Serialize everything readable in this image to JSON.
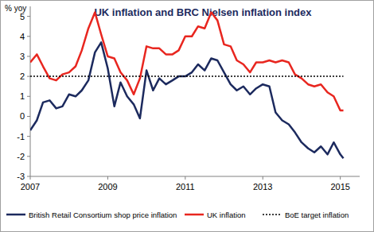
{
  "chart_data": {
    "type": "line",
    "title": "UK inflation and BRC Nielsen inflation index",
    "y_label": "% yoy",
    "x": [
      2007.0,
      2007.17,
      2007.33,
      2007.5,
      2007.67,
      2007.83,
      2008.0,
      2008.17,
      2008.33,
      2008.5,
      2008.67,
      2008.83,
      2009.0,
      2009.17,
      2009.33,
      2009.5,
      2009.67,
      2009.83,
      2010.0,
      2010.17,
      2010.33,
      2010.5,
      2010.67,
      2010.83,
      2011.0,
      2011.17,
      2011.33,
      2011.5,
      2011.67,
      2011.83,
      2012.0,
      2012.17,
      2012.33,
      2012.5,
      2012.67,
      2012.83,
      2013.0,
      2013.17,
      2013.33,
      2013.5,
      2013.67,
      2013.83,
      2014.0,
      2014.17,
      2014.33,
      2014.5,
      2014.67,
      2014.83,
      2015.0,
      2015.08
    ],
    "series": [
      {
        "name": "British Retail Consortium shop price inflation",
        "color": "#1c2a5e",
        "line_style": "solid",
        "values": [
          -0.7,
          -0.2,
          0.7,
          0.8,
          0.4,
          0.5,
          1.1,
          1.0,
          1.3,
          1.8,
          3.2,
          3.7,
          2.4,
          0.5,
          1.7,
          1.0,
          0.6,
          -0.1,
          2.3,
          1.3,
          1.9,
          1.6,
          1.8,
          2.0,
          2.0,
          2.2,
          2.6,
          2.3,
          2.9,
          2.8,
          2.2,
          1.6,
          1.3,
          1.5,
          1.1,
          1.4,
          1.6,
          1.5,
          0.2,
          -0.2,
          -0.4,
          -0.8,
          -1.3,
          -1.6,
          -1.8,
          -1.5,
          -1.9,
          -1.3,
          -1.9,
          -2.1
        ]
      },
      {
        "name": "UK inflation",
        "color": "#e8261f",
        "line_style": "solid",
        "values": [
          2.7,
          3.1,
          2.5,
          1.9,
          1.8,
          2.1,
          2.2,
          2.5,
          3.3,
          4.4,
          5.2,
          4.1,
          3.0,
          2.9,
          2.2,
          1.8,
          1.1,
          1.9,
          3.5,
          3.4,
          3.4,
          3.1,
          3.1,
          3.3,
          4.0,
          4.0,
          4.5,
          4.4,
          5.2,
          4.8,
          3.6,
          3.5,
          2.8,
          2.6,
          2.2,
          2.7,
          2.7,
          2.8,
          2.7,
          2.8,
          2.7,
          2.1,
          1.9,
          1.6,
          1.5,
          1.6,
          1.2,
          1.0,
          0.3,
          0.3
        ]
      },
      {
        "name": "BoE target inflation",
        "color": "#000000",
        "line_style": "dotted",
        "values": [
          2,
          2,
          2,
          2,
          2,
          2,
          2,
          2,
          2,
          2,
          2,
          2,
          2,
          2,
          2,
          2,
          2,
          2,
          2,
          2,
          2,
          2,
          2,
          2,
          2,
          2,
          2,
          2,
          2,
          2,
          2,
          2,
          2,
          2,
          2,
          2,
          2,
          2,
          2,
          2,
          2,
          2,
          2,
          2,
          2,
          2,
          2,
          2,
          2,
          2
        ]
      }
    ],
    "xlim": [
      2007,
      2015.5
    ],
    "xticks": [
      2007,
      2009,
      2011,
      2013,
      2015
    ],
    "ylim": [
      -3,
      5.5
    ],
    "yticks": [
      -3,
      -2,
      -1,
      0,
      1,
      2,
      3,
      4,
      5
    ],
    "grid": false,
    "legend": "bottom"
  }
}
